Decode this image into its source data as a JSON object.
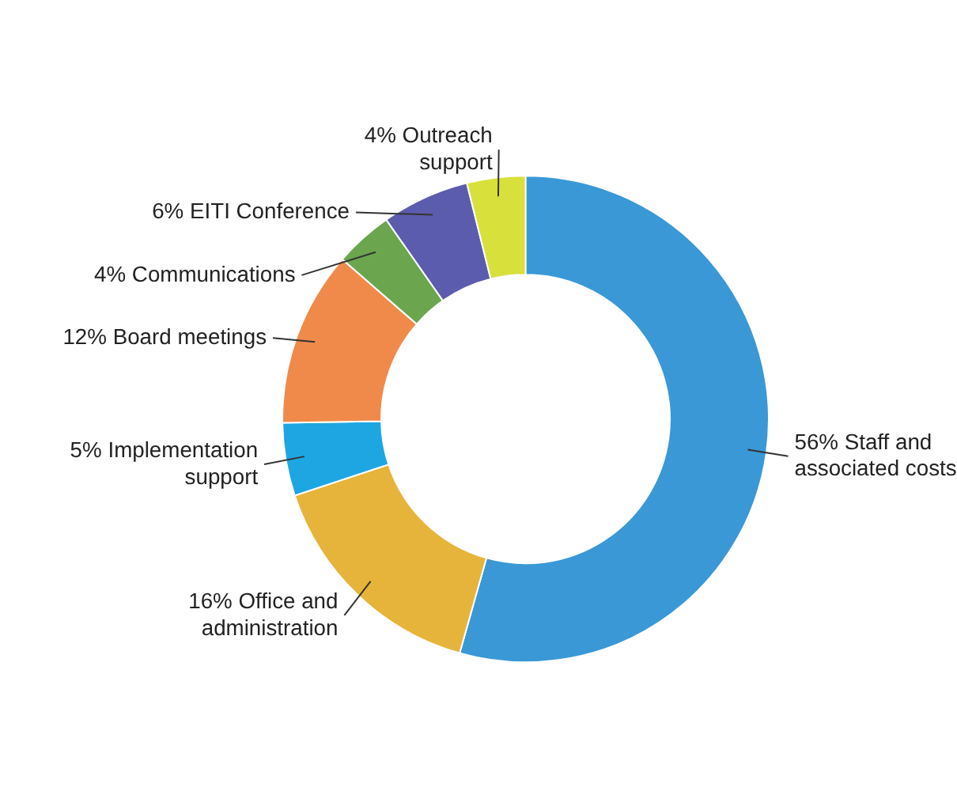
{
  "chart_data": {
    "type": "donut",
    "categories": [
      "Staff and associated costs",
      "Office and administration",
      "Implementation support",
      "Board meetings",
      "Communications",
      "EITI Conference",
      "Outreach support"
    ],
    "values": [
      56,
      16,
      5,
      12,
      4,
      6,
      4
    ],
    "value_labels": [
      "56%",
      "16%",
      "5%",
      "12%",
      "4%",
      "6%",
      "4%"
    ],
    "colors": [
      "#3a98d6",
      "#e6b43a",
      "#1ea6e2",
      "#f08a4b",
      "#6ba64f",
      "#5c5cae",
      "#d8e03c"
    ],
    "legend": false
  }
}
